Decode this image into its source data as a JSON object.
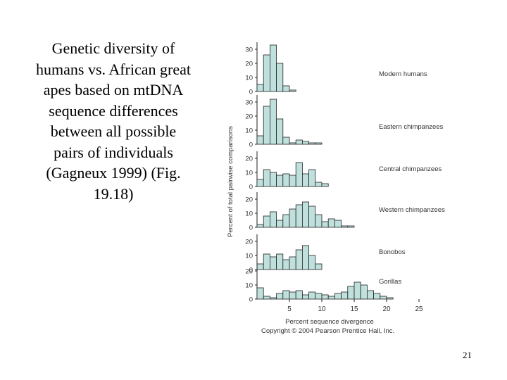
{
  "slide": {
    "caption": "Genetic diversity of humans vs. African great apes based on mtDNA sequence differences between all possible pairs of individuals (Gagneux 1999) (Fig. 19.18)",
    "page_number": "21"
  },
  "colors": {
    "bar_fill": "#bfe0dd",
    "bar_stroke": "#222222",
    "axis": "#222222",
    "text": "#333333"
  },
  "chart_data": {
    "type": "bar",
    "ylabel": "Percent of total pairwise comparisons",
    "xlabel": "Percent sequence divergence",
    "credit": "Copyright © 2004 Pearson Prentice Hall, Inc.",
    "xlim": [
      0,
      25
    ],
    "bin_width": 1,
    "x_ticks": [
      5,
      10,
      15,
      20,
      25
    ],
    "panels": [
      {
        "name": "Modern humans",
        "y_ticks": [
          0,
          10,
          20,
          30
        ],
        "ylim": [
          0,
          35
        ],
        "values": [
          5,
          26,
          33,
          20,
          4,
          1,
          0,
          0,
          0,
          0,
          0,
          0,
          0,
          0,
          0,
          0,
          0,
          0,
          0,
          0,
          0,
          0,
          0,
          0,
          0
        ]
      },
      {
        "name": "Eastern chimpanzees",
        "y_ticks": [
          0,
          10,
          20,
          30
        ],
        "ylim": [
          0,
          35
        ],
        "values": [
          6,
          27,
          32,
          18,
          5,
          1,
          3,
          2,
          1,
          1,
          0,
          0,
          0,
          0,
          0,
          0,
          0,
          0,
          0,
          0,
          0,
          0,
          0,
          0,
          0
        ]
      },
      {
        "name": "Central chimpanzees",
        "y_ticks": [
          0,
          10,
          20
        ],
        "ylim": [
          0,
          25
        ],
        "values": [
          5,
          12,
          10,
          8,
          9,
          8,
          17,
          9,
          12,
          3,
          2,
          0,
          0,
          0,
          0,
          0,
          0,
          0,
          0,
          0,
          0,
          0,
          0,
          0,
          0
        ]
      },
      {
        "name": "Western chimpanzees",
        "y_ticks": [
          0,
          10,
          20
        ],
        "ylim": [
          0,
          25
        ],
        "values": [
          2,
          8,
          11,
          5,
          9,
          13,
          16,
          18,
          15,
          9,
          4,
          6,
          5,
          1,
          1,
          0,
          0,
          0,
          0,
          0,
          0,
          0,
          0,
          0,
          0
        ]
      },
      {
        "name": "Bonobos",
        "y_ticks": [
          0,
          10,
          20
        ],
        "ylim": [
          0,
          25
        ],
        "values": [
          4,
          11,
          9,
          11,
          7,
          9,
          14,
          17,
          10,
          4,
          0,
          0,
          0,
          0,
          0,
          0,
          0,
          0,
          0,
          0,
          0,
          0,
          0,
          0,
          0
        ]
      },
      {
        "name": "Gorillas",
        "y_ticks": [
          0,
          10,
          20
        ],
        "ylim": [
          0,
          25
        ],
        "values": [
          8,
          2,
          1,
          4,
          6,
          5,
          6,
          3,
          5,
          4,
          3,
          2,
          4,
          5,
          9,
          12,
          10,
          6,
          4,
          2,
          1,
          0,
          0,
          0,
          0
        ]
      }
    ]
  }
}
